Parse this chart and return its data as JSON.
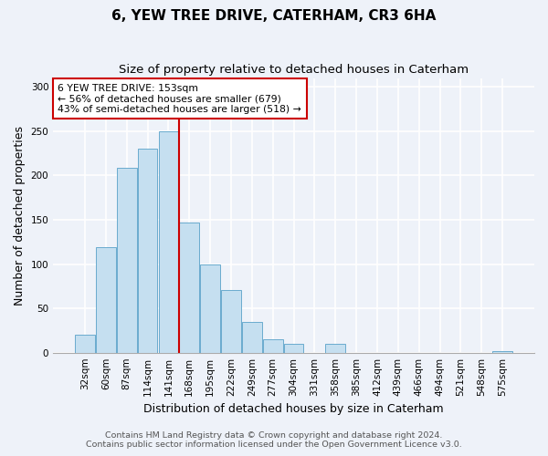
{
  "title": "6, YEW TREE DRIVE, CATERHAM, CR3 6HA",
  "subtitle": "Size of property relative to detached houses in Caterham",
  "xlabel": "Distribution of detached houses by size in Caterham",
  "ylabel": "Number of detached properties",
  "bar_labels": [
    "32sqm",
    "60sqm",
    "87sqm",
    "114sqm",
    "141sqm",
    "168sqm",
    "195sqm",
    "222sqm",
    "249sqm",
    "277sqm",
    "304sqm",
    "331sqm",
    "358sqm",
    "385sqm",
    "412sqm",
    "439sqm",
    "466sqm",
    "494sqm",
    "521sqm",
    "548sqm",
    "575sqm"
  ],
  "bar_values": [
    20,
    119,
    209,
    230,
    250,
    147,
    100,
    71,
    35,
    15,
    10,
    0,
    10,
    0,
    0,
    0,
    0,
    0,
    0,
    0,
    2
  ],
  "bar_color": "#c5dff0",
  "bar_edge_color": "#6aabce",
  "vline_x_index": 5,
  "vline_color": "#cc0000",
  "annotation_title": "6 YEW TREE DRIVE: 153sqm",
  "annotation_line1": "← 56% of detached houses are smaller (679)",
  "annotation_line2": "43% of semi-detached houses are larger (518) →",
  "annotation_box_color": "#ffffff",
  "annotation_box_edge": "#cc0000",
  "ylim": [
    0,
    310
  ],
  "yticks": [
    0,
    50,
    100,
    150,
    200,
    250,
    300
  ],
  "footer1": "Contains HM Land Registry data © Crown copyright and database right 2024.",
  "footer2": "Contains public sector information licensed under the Open Government Licence v3.0.",
  "background_color": "#eef2f9",
  "grid_color": "#ffffff",
  "title_fontsize": 11,
  "subtitle_fontsize": 9.5,
  "axis_label_fontsize": 9,
  "tick_fontsize": 7.5,
  "footer_fontsize": 6.8
}
